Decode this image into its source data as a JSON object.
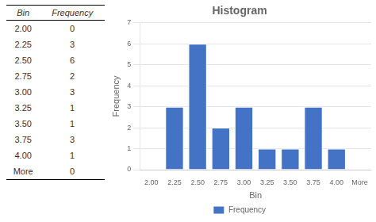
{
  "chart_data": [
    {
      "type": "table",
      "columns": [
        "Bin",
        "Frequency"
      ],
      "rows": [
        [
          "2.00",
          0
        ],
        [
          "2.25",
          3
        ],
        [
          "2.50",
          6
        ],
        [
          "2.75",
          2
        ],
        [
          "3.00",
          3
        ],
        [
          "3.25",
          1
        ],
        [
          "3.50",
          1
        ],
        [
          "3.75",
          3
        ],
        [
          "4.00",
          1
        ],
        [
          "More",
          0
        ]
      ]
    },
    {
      "type": "bar",
      "title": "Histogram",
      "x_label": "Bin",
      "y_label": "Frequency",
      "categories": [
        "2.00",
        "2.25",
        "2.50",
        "2.75",
        "3.00",
        "3.25",
        "3.50",
        "3.75",
        "4.00",
        "More"
      ],
      "series": [
        {
          "name": "Frequency",
          "color": "#4472C4",
          "values": [
            0,
            3,
            6,
            2,
            3,
            1,
            1,
            3,
            1,
            0
          ]
        }
      ],
      "ylim": [
        0,
        7
      ],
      "yticks": [
        0,
        1,
        2,
        3,
        4,
        5,
        6,
        7
      ],
      "grid": true,
      "legend": "bottom"
    }
  ]
}
